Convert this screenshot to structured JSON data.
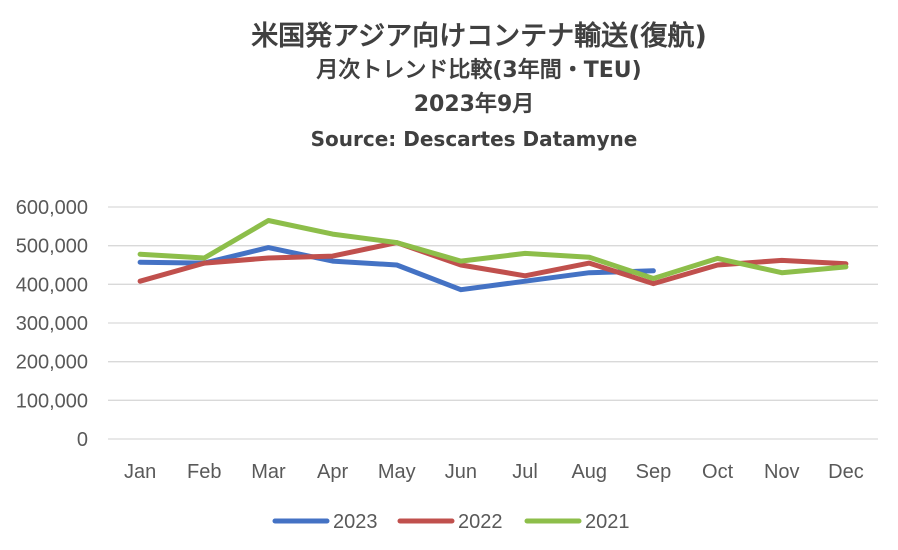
{
  "chart_data": {
    "type": "line",
    "title": "米国発アジア向けコンテナ輸送(復航)",
    "subtitle": "月次トレンド比較(3年間・TEU)",
    "period": "2023年9月",
    "source": "Source: Descartes Datamyne",
    "categories": [
      "Jan",
      "Feb",
      "Mar",
      "Apr",
      "May",
      "Jun",
      "Jul",
      "Aug",
      "Sep",
      "Oct",
      "Nov",
      "Dec"
    ],
    "ylim": [
      0,
      600000
    ],
    "yticks": [
      0,
      100000,
      200000,
      300000,
      400000,
      500000,
      600000
    ],
    "ytick_labels": [
      "0",
      "100,000",
      "200,000",
      "300,000",
      "400,000",
      "500,000",
      "600,000"
    ],
    "grid": true,
    "legend_position": "bottom",
    "series": [
      {
        "name": "2023",
        "color": "#4472C4",
        "values": [
          457000,
          455000,
          495000,
          460000,
          450000,
          386000,
          408000,
          430000,
          435000,
          null,
          null,
          null
        ]
      },
      {
        "name": "2022",
        "color": "#C0504D",
        "values": [
          408000,
          455000,
          468000,
          473000,
          508000,
          450000,
          422000,
          455000,
          402000,
          450000,
          462000,
          453000
        ]
      },
      {
        "name": "2021",
        "color": "#8DBE4A",
        "values": [
          478000,
          468000,
          565000,
          530000,
          508000,
          460000,
          480000,
          470000,
          415000,
          467000,
          430000,
          445000
        ]
      }
    ]
  }
}
